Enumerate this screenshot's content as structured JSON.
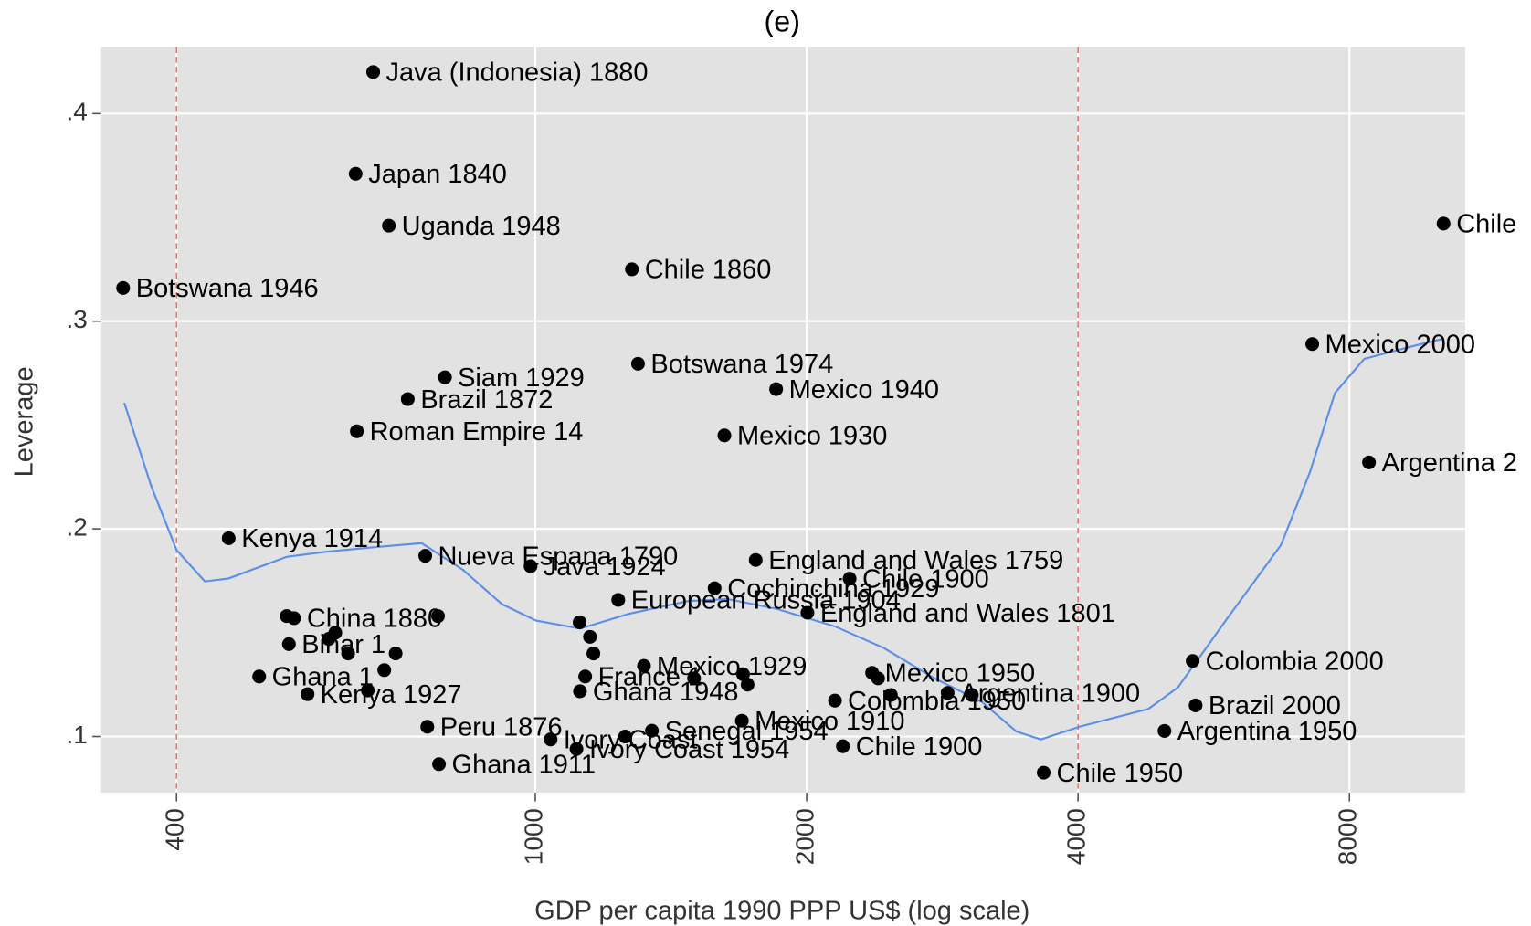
{
  "chart_data": {
    "type": "scatter",
    "title": "(e)",
    "x_label": "GDP per capita 1990 PPP US$ (log scale)",
    "y_label": "Leverage",
    "x_log": true,
    "grid": true,
    "marker_color": "#000000",
    "background": "#e2e2e2",
    "xlim": [
      330,
      10750
    ],
    "ylim": [
      0.073,
      0.432
    ],
    "xticks": [
      400,
      1000,
      2000,
      4000,
      8000
    ],
    "yticks": [
      {
        "value": 0.1,
        "label": ".1"
      },
      {
        "value": 0.2,
        "label": ".2"
      },
      {
        "value": 0.3,
        "label": ".3"
      },
      {
        "value": 0.4,
        "label": ".4"
      }
    ],
    "reference_lines": {
      "x": [
        400,
        4000
      ],
      "color": "#e8736c"
    },
    "x": [
      661,
      632,
      688,
      349,
      1280,
      10174,
      7276,
      8410,
      794,
      722,
      634,
      1300,
      1850,
      1621,
      457,
      755,
      988,
      1756,
      2232,
      1581,
      1236,
      2004,
      5361,
      5401,
      4988,
      3664,
      2194,
      1695,
      2150,
      2867,
      2364,
      759,
      782,
      494,
      559,
      1121,
      1111,
      1040,
      1347,
      540,
      533,
      1136,
      1320,
      652,
      1258,
      600,
      620,
      680,
      780,
      1120,
      1160,
      1500,
      1700,
      2400,
      2480,
      3050,
      530,
      590,
      700,
      1150,
      1720
    ],
    "values": [
      0.42,
      0.371,
      0.346,
      0.316,
      0.325,
      0.347,
      0.289,
      0.232,
      0.273,
      0.2625,
      0.247,
      0.2795,
      0.2673,
      0.245,
      0.1955,
      0.187,
      0.182,
      0.185,
      0.176,
      0.1714,
      0.1658,
      0.1596,
      0.1364,
      0.115,
      0.1027,
      0.0826,
      0.0953,
      0.1076,
      0.1173,
      0.121,
      0.1307,
      0.1047,
      0.0867,
      0.1289,
      0.1204,
      0.1218,
      0.094,
      0.0986,
      0.1028,
      0.157,
      0.1445,
      0.1289,
      0.134,
      0.1222,
      0.1,
      0.15,
      0.14,
      0.132,
      0.158,
      0.155,
      0.14,
      0.128,
      0.13,
      0.128,
      0.12,
      0.12,
      0.158,
      0.147,
      0.14,
      0.148,
      0.125
    ],
    "labels": [
      "Java (Indonesia) 1880",
      "Japan 1840",
      "Uganda 1948",
      "Botswana 1946",
      "Chile 1860",
      "Chile",
      "Mexico 2000",
      "Argentina 2",
      "Siam 1929",
      "Brazil 1872",
      "Roman Empire 14",
      "Botswana 1974",
      "Mexico 1940",
      "Mexico 1930",
      "Kenya 1914",
      "Nueva Espana 1790",
      "Java 1924",
      "England and Wales 1759",
      "Chile 1900",
      "Cochinchina 1929",
      "European Russia 1904",
      "England and Wales 1801",
      "Colombia 2000",
      "Brazil 2000",
      "Argentina 1950",
      "Chile 1950",
      "Chile 1900",
      "Mexico 1910",
      "Colombia 1950",
      "Argentina 1900",
      "Mexico 1950",
      "Peru 1876",
      "Ghana 1911",
      "Ghana 1",
      "Kenya 1927",
      "Ghana 1948",
      "Ivory Coast 1954",
      "Ivory Coast",
      "Senegal 1954",
      "China 1880",
      "Bihar 1",
      "France 1",
      "Mexico 1929",
      null,
      null,
      null,
      null,
      null,
      null,
      null,
      null,
      null,
      null,
      null,
      null,
      null,
      null,
      null,
      null,
      null,
      null
    ],
    "fit_line": {
      "color": "#5b8fe8",
      "x": [
        350,
        375,
        400,
        430,
        457,
        530,
        585,
        663,
        748,
        831,
        918,
        1002,
        1121,
        1271,
        1477,
        1633,
        1851,
        2150,
        2437,
        2762,
        3130,
        3417,
        3637,
        4020,
        4788,
        5164,
        5852,
        6716,
        7236,
        7708,
        8308,
        9412,
        10148
      ],
      "values": [
        0.2607,
        0.2205,
        0.1898,
        0.1747,
        0.1761,
        0.1865,
        0.1889,
        0.1912,
        0.1931,
        0.1803,
        0.1638,
        0.1558,
        0.152,
        0.1591,
        0.1652,
        0.1662,
        0.1615,
        0.153,
        0.1426,
        0.1284,
        0.1166,
        0.1024,
        0.0986,
        0.1048,
        0.1133,
        0.1237,
        0.1567,
        0.1922,
        0.2276,
        0.2654,
        0.2819,
        0.288,
        0.2914
      ]
    }
  }
}
